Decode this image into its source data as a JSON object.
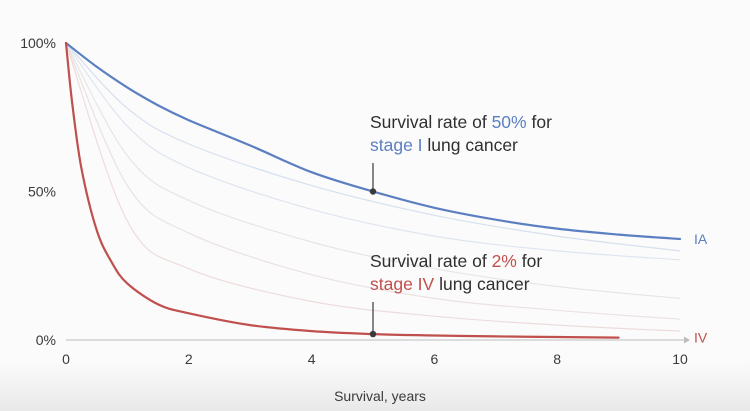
{
  "chart_data": {
    "type": "line",
    "xlabel": "Survival, years",
    "ylabel": "",
    "xlim": [
      0,
      10
    ],
    "ylim": [
      0,
      100
    ],
    "x_ticks": [
      "0",
      "2",
      "4",
      "6",
      "8",
      "10"
    ],
    "y_ticks": [
      "0%",
      "50%",
      "100%"
    ],
    "grid": false,
    "series": [
      {
        "name": "IA",
        "color": "#5b7fc1",
        "x": [
          0,
          0.5,
          1,
          1.5,
          2,
          3,
          4,
          5,
          6,
          7,
          8,
          9,
          10
        ],
        "y": [
          100,
          92,
          85,
          79,
          74,
          65.5,
          56.5,
          50,
          44.5,
          40.5,
          37.5,
          35.5,
          34
        ]
      },
      {
        "name": "IV",
        "color": "#c0504d",
        "x": [
          0,
          0.1,
          0.25,
          0.5,
          0.75,
          1,
          1.5,
          2,
          3,
          4,
          5,
          6,
          7,
          8,
          9
        ],
        "y": [
          100,
          80,
          58,
          37,
          26,
          19,
          12,
          9,
          5,
          3,
          2,
          1.5,
          1.2,
          1,
          0.8
        ]
      }
    ],
    "faint_series": [
      {
        "color": "#d6e0ef",
        "x": [
          0,
          1,
          2,
          4,
          6,
          8,
          10
        ],
        "y": [
          100,
          78,
          66,
          52,
          42,
          35,
          30
        ]
      },
      {
        "color": "#dfe5ef",
        "x": [
          0,
          1,
          2,
          4,
          6,
          8,
          10
        ],
        "y": [
          100,
          72,
          58,
          44,
          35,
          30,
          27
        ]
      },
      {
        "color": "#e6e6ea",
        "x": [
          0,
          1,
          2,
          4,
          6,
          8,
          10
        ],
        "y": [
          100,
          62,
          47,
          33,
          24,
          18,
          14
        ]
      },
      {
        "color": "#ebe2e2",
        "x": [
          0,
          1,
          2,
          4,
          6,
          8,
          10
        ],
        "y": [
          100,
          52,
          36,
          22,
          14,
          10,
          7
        ]
      },
      {
        "color": "#eedcdc",
        "x": [
          0,
          1,
          2,
          4,
          6,
          8,
          10
        ],
        "y": [
          100,
          40,
          24,
          13,
          8,
          5,
          3
        ]
      }
    ],
    "annotations": [
      {
        "line1_prefix": "Survival rate of ",
        "line1_highlight": "50%",
        "line1_suffix": " for",
        "line2_highlight": "stage I",
        "line2_suffix": " lung cancer",
        "highlight_color": "#5b7fc1",
        "point": {
          "x": 5,
          "y": 50
        }
      },
      {
        "line1_prefix": "Survival rate of ",
        "line1_highlight": "2%",
        "line1_suffix": " for",
        "line2_highlight": "stage IV",
        "line2_suffix": " lung cancer",
        "highlight_color": "#c0504d",
        "point": {
          "x": 5,
          "y": 2
        }
      }
    ]
  }
}
